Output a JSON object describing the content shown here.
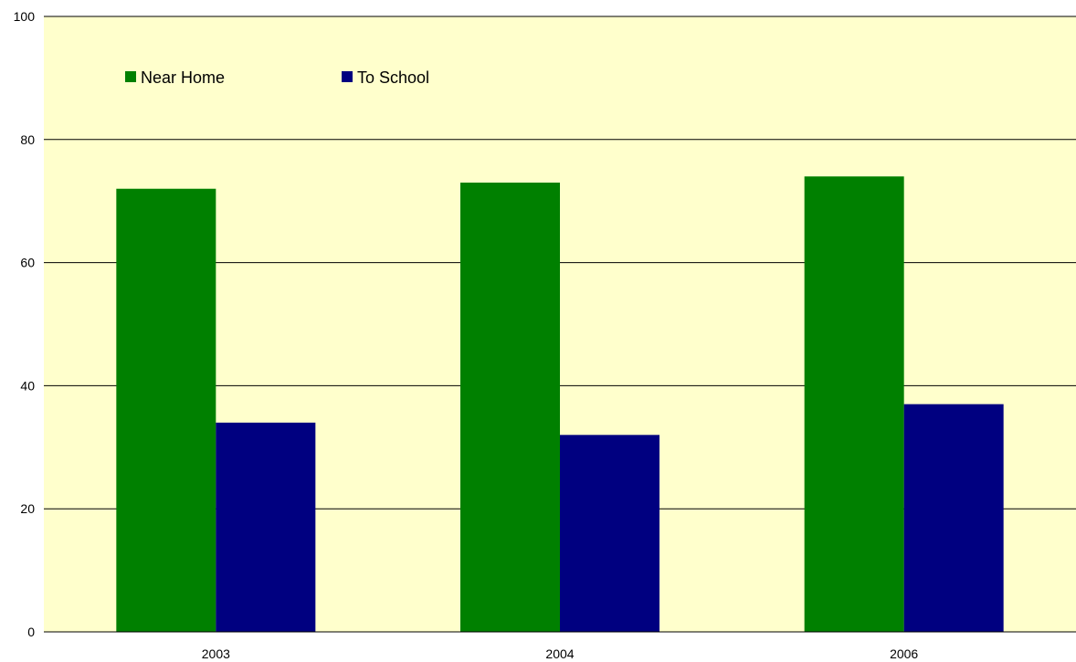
{
  "chart_data": {
    "type": "bar",
    "categories": [
      "2003",
      "2004",
      "2006"
    ],
    "series": [
      {
        "name": "Near Home",
        "values": [
          72,
          73,
          74
        ],
        "color": "#008000"
      },
      {
        "name": "To School",
        "values": [
          34,
          32,
          37
        ],
        "color": "#000080"
      }
    ],
    "ylim": [
      0,
      100
    ],
    "yticks": [
      "0",
      "20",
      "40",
      "60",
      "80",
      "100"
    ],
    "grid": true,
    "legend_position": "top-left",
    "plot_background": "#ffffcc"
  }
}
